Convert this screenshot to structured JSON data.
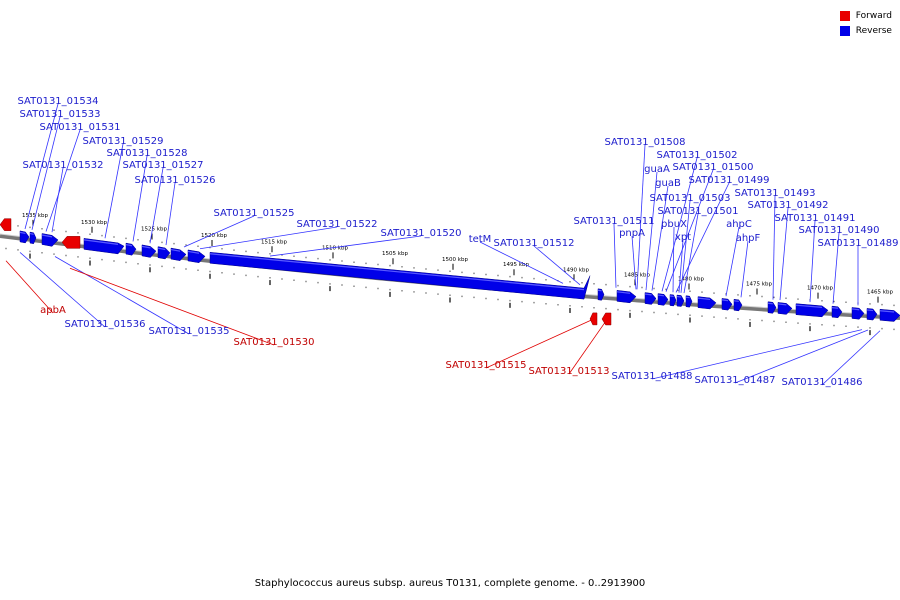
{
  "caption": "Staphylococcus aureus subsp. aureus T0131, complete genome. - 0..2913900",
  "legend": [
    {
      "label": "Forward",
      "color": "#e80000"
    },
    {
      "label": "Reverse",
      "color": "#0000e8"
    }
  ],
  "colors": {
    "forward": "#e80000",
    "reverse": "#0000e8",
    "label_forward": "#c00000",
    "label_reverse": "#1c1ccc",
    "leader": "#3333ff",
    "leader_forward": "#e00000"
  },
  "ticks": [
    {
      "label": "1535 kbp"
    },
    {
      "label": "1530 kbp"
    },
    {
      "label": "1525 kbp"
    },
    {
      "label": "1520 kbp"
    },
    {
      "label": "1515 kbp"
    },
    {
      "label": "1510 kbp"
    },
    {
      "label": "1505 kbp"
    },
    {
      "label": "1500 kbp"
    },
    {
      "label": "1495 kbp"
    },
    {
      "label": "1490 kbp"
    },
    {
      "label": "1485 kbp"
    },
    {
      "label": "1480 kbp"
    },
    {
      "label": "1475 kbp"
    },
    {
      "label": "1470 kbp"
    },
    {
      "label": "1465 kbp"
    }
  ],
  "genes_top": [
    "SAT0131_01534",
    "SAT0131_01533",
    "SAT0131_01531",
    "SAT0131_01529",
    "SAT0131_01528",
    "SAT0131_01532",
    "SAT0131_01527",
    "SAT0131_01526",
    "SAT0131_01525",
    "SAT0131_01522",
    "SAT0131_01520",
    "tetM",
    "SAT0131_01512",
    "SAT0131_01511",
    "pnpA",
    "SAT0131_01508",
    "guaA",
    "guaB",
    "SAT0131_01502",
    "SAT0131_01500",
    "SAT0131_01499",
    "SAT0131_01503",
    "pbuX",
    "SAT0131_01501",
    "xpt",
    "ahpC",
    "ahpF",
    "SAT0131_01493",
    "SAT0131_01492",
    "SAT0131_01491",
    "SAT0131_01490",
    "SAT0131_01489"
  ],
  "genes_bottom": [
    "apbA",
    "SAT0131_01536",
    "SAT0131_01535",
    "SAT0131_01530",
    "SAT0131_01515",
    "SAT0131_01513",
    "SAT0131_01488",
    "SAT0131_01487",
    "SAT0131_01486"
  ]
}
